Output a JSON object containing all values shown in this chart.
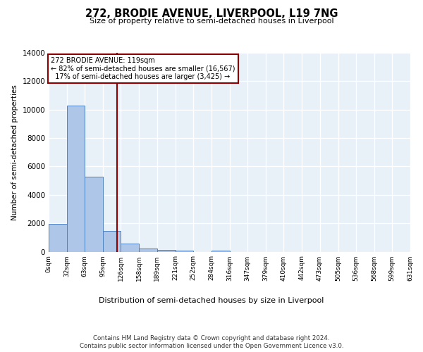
{
  "title": "272, BRODIE AVENUE, LIVERPOOL, L19 7NG",
  "subtitle": "Size of property relative to semi-detached houses in Liverpool",
  "xlabel": "Distribution of semi-detached houses by size in Liverpool",
  "ylabel": "Number of semi-detached properties",
  "footer_line1": "Contains HM Land Registry data © Crown copyright and database right 2024.",
  "footer_line2": "Contains public sector information licensed under the Open Government Licence v3.0.",
  "property_label": "272 BRODIE AVENUE: 119sqm",
  "pct_smaller": 82,
  "count_smaller": 16567,
  "pct_larger": 17,
  "count_larger": 3425,
  "bin_edges": [
    0,
    32,
    63,
    95,
    126,
    158,
    189,
    221,
    252,
    284,
    316,
    347,
    379,
    410,
    442,
    473,
    505,
    536,
    568,
    599,
    631
  ],
  "bin_labels": [
    "0sqm",
    "32sqm",
    "63sqm",
    "95sqm",
    "126sqm",
    "158sqm",
    "189sqm",
    "221sqm",
    "252sqm",
    "284sqm",
    "316sqm",
    "347sqm",
    "379sqm",
    "410sqm",
    "442sqm",
    "473sqm",
    "505sqm",
    "536sqm",
    "568sqm",
    "599sqm",
    "631sqm"
  ],
  "bar_heights": [
    1950,
    10300,
    5300,
    1450,
    550,
    200,
    125,
    80,
    0,
    75,
    0,
    0,
    0,
    0,
    0,
    0,
    0,
    0,
    0,
    0
  ],
  "bar_color": "#aec6e8",
  "bar_edge_color": "#4f81bd",
  "vline_color": "#8b0000",
  "vline_x": 119,
  "box_color": "#8b0000",
  "ylim": [
    0,
    14000
  ],
  "yticks": [
    0,
    2000,
    4000,
    6000,
    8000,
    10000,
    12000,
    14000
  ],
  "background_color": "#e8f0f8",
  "grid_color": "#ffffff"
}
